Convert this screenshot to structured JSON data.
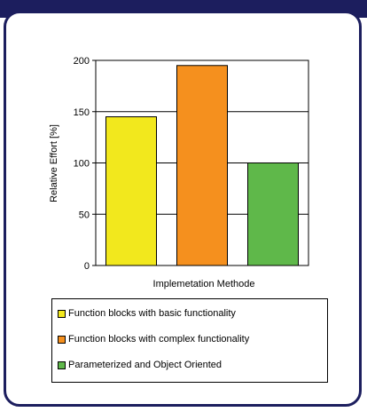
{
  "chart_data": {
    "type": "bar",
    "title": "",
    "xlabel": "Implemetation Methode",
    "ylabel": "Relative Effort [%]",
    "ylim": [
      0,
      200
    ],
    "yticks": [
      0,
      50,
      100,
      150,
      200
    ],
    "categories": [
      "Function blocks with basic functionality",
      "Function blocks with complex functionality",
      "Parameterized and Object Oriented"
    ],
    "values": [
      145,
      195,
      100
    ],
    "colors": [
      "#f2e81d",
      "#f5901e",
      "#5fb84a"
    ],
    "grid": "horizontal",
    "legend_position": "bottom"
  },
  "legend": {
    "items": [
      {
        "label": "Function blocks with basic functionality",
        "color": "#f2e81d"
      },
      {
        "label": "Function blocks with complex functionality",
        "color": "#f5901e"
      },
      {
        "label": "Parameterized and Object Oriented",
        "color": "#5fb84a"
      }
    ]
  }
}
